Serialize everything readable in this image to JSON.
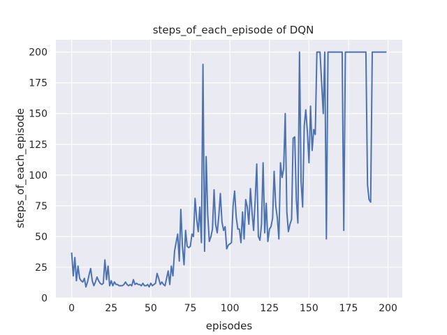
{
  "chart_data": {
    "type": "line",
    "title": "steps_of_each_episode of DQN",
    "xlabel": "episodes",
    "ylabel": "steps_of_each_episode",
    "xlim": [
      -10,
      209
    ],
    "ylim": [
      0,
      210
    ],
    "xticks": [
      0,
      25,
      50,
      75,
      100,
      125,
      150,
      175,
      200
    ],
    "yticks": [
      0,
      25,
      50,
      75,
      100,
      125,
      150,
      175,
      200
    ],
    "grid": true,
    "background": "#eaeaf2",
    "line_color": "#4c72b0",
    "series": [
      {
        "values": [
          37,
          18,
          33,
          14,
          26,
          16,
          14,
          13,
          16,
          9,
          13,
          19,
          24,
          14,
          10,
          13,
          17,
          14,
          12,
          11,
          12,
          31,
          15,
          26,
          10,
          14,
          10,
          13,
          11,
          11,
          10,
          10,
          10,
          11,
          13,
          11,
          10,
          11,
          10,
          15,
          11,
          12,
          11,
          11,
          10,
          12,
          10,
          10,
          11,
          9,
          12,
          10,
          11,
          12,
          20,
          16,
          11,
          13,
          11,
          10,
          16,
          22,
          11,
          26,
          18,
          38,
          45,
          52,
          30,
          72,
          42,
          27,
          55,
          42,
          41,
          42,
          52,
          50,
          81,
          64,
          54,
          74,
          45,
          190,
          38,
          115,
          68,
          46,
          50,
          56,
          88,
          60,
          53,
          67,
          85,
          62,
          55,
          58,
          40,
          43,
          44,
          45,
          75,
          87,
          66,
          56,
          56,
          45,
          70,
          48,
          80,
          74,
          60,
          89,
          70,
          55,
          80,
          109,
          50,
          47,
          60,
          110,
          53,
          77,
          46,
          56,
          58,
          65,
          103,
          75,
          65,
          48,
          110,
          98,
          105,
          150,
          70,
          54,
          60,
          64,
          130,
          131,
          80,
          61,
          200,
          95,
          74,
          140,
          153,
          135,
          110,
          156,
          120,
          137,
          133,
          200,
          200,
          200,
          175,
          150,
          200,
          48,
          200,
          200,
          200,
          200,
          200,
          200,
          200,
          200,
          200,
          200,
          55,
          200,
          200,
          200,
          200,
          200,
          200,
          200,
          200,
          200,
          200,
          200,
          200,
          200,
          200,
          92,
          80,
          78,
          200,
          200,
          200,
          200,
          200,
          200,
          200,
          200,
          200,
          200
        ]
      }
    ]
  }
}
